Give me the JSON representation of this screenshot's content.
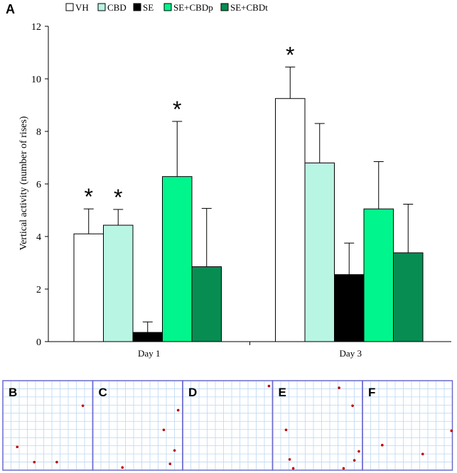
{
  "panel_main_label": "A",
  "chart_data": {
    "type": "bar",
    "title": "",
    "xlabel": "",
    "ylabel": "Vertical activity (number of rises)",
    "ylim": [
      0,
      12
    ],
    "yticks": [
      0,
      2,
      4,
      6,
      8,
      10,
      12
    ],
    "grid": false,
    "legend_position": "top",
    "categories": [
      "Day 1",
      "Day 3"
    ],
    "series": [
      {
        "name": "VH",
        "color": "#ffffff",
        "values": [
          4.1,
          9.25
        ],
        "errors": [
          0.95,
          1.2
        ],
        "significant": [
          true,
          true
        ]
      },
      {
        "name": "CBD",
        "color": "#b9f5e3",
        "values": [
          4.43,
          6.8
        ],
        "errors": [
          0.6,
          1.5
        ],
        "significant": [
          true,
          false
        ]
      },
      {
        "name": "SE",
        "color": "#000000",
        "values": [
          0.35,
          2.55
        ],
        "errors": [
          0.4,
          1.2
        ],
        "significant": [
          false,
          false
        ]
      },
      {
        "name": "SE+CBDp",
        "color": "#00f58c",
        "values": [
          6.28,
          5.05
        ],
        "errors": [
          2.1,
          1.8
        ],
        "significant": [
          true,
          false
        ]
      },
      {
        "name": "SE+CBDt",
        "color": "#078d52",
        "values": [
          2.85,
          3.38
        ],
        "errors": [
          2.22,
          1.85
        ],
        "significant": [
          false,
          false
        ]
      }
    ],
    "significance_marker": "*"
  },
  "tracking_panels": [
    {
      "label": "B",
      "dots": [
        [
          0.89,
          0.28
        ],
        [
          0.16,
          0.74
        ],
        [
          0.35,
          0.91
        ],
        [
          0.6,
          0.91
        ]
      ]
    },
    {
      "label": "C",
      "dots": [
        [
          0.95,
          0.33
        ],
        [
          0.79,
          0.55
        ],
        [
          0.91,
          0.78
        ],
        [
          0.86,
          0.93
        ],
        [
          0.33,
          0.97
        ]
      ]
    },
    {
      "label": "D",
      "dots": [
        [
          0.96,
          0.06
        ]
      ]
    },
    {
      "label": "E",
      "dots": [
        [
          0.74,
          0.08
        ],
        [
          0.89,
          0.28
        ],
        [
          0.15,
          0.55
        ],
        [
          0.96,
          0.79
        ],
        [
          0.19,
          0.88
        ],
        [
          0.91,
          0.89
        ],
        [
          0.23,
          0.98
        ],
        [
          0.79,
          0.98
        ]
      ]
    },
    {
      "label": "F",
      "dots": [
        [
          0.99,
          0.56
        ],
        [
          0.22,
          0.72
        ],
        [
          0.67,
          0.82
        ]
      ]
    }
  ]
}
